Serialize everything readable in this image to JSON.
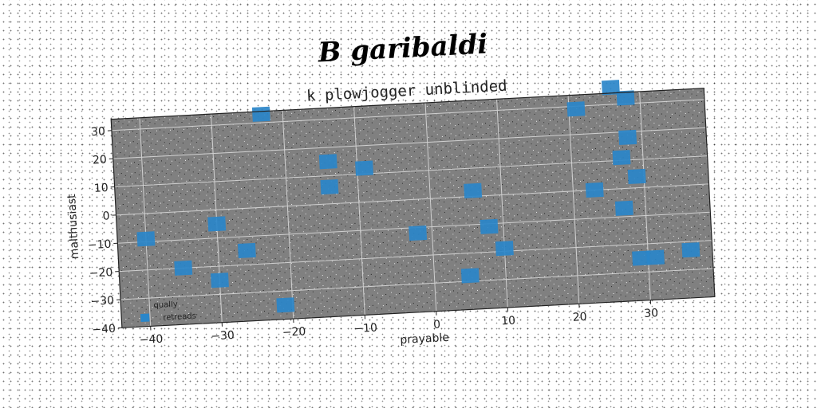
{
  "suptitle": "B garibaldi",
  "chart_data": {
    "type": "scatter",
    "title": "k plowjogger unblinded",
    "xlabel": "prayable",
    "ylabel": "malthusiast",
    "xlim": [
      -44,
      39
    ],
    "ylim": [
      -40,
      34
    ],
    "xticks": [
      -40,
      -30,
      -20,
      -10,
      0,
      10,
      20,
      30
    ],
    "yticks": [
      -40,
      -30,
      -20,
      -10,
      0,
      10,
      20,
      30
    ],
    "grid": true,
    "legend": {
      "placement": "lower-left",
      "title": "qually",
      "entries": [
        "retreads"
      ]
    },
    "series": [
      {
        "name": "retreads",
        "color": "#2a86c9",
        "points": [
          [
            -23,
            33
          ],
          [
            -40,
            -9
          ],
          [
            -35,
            -20
          ],
          [
            -30,
            -5
          ],
          [
            -30,
            -25
          ],
          [
            -26,
            -15
          ],
          [
            -21,
            -35
          ],
          [
            -14,
            15
          ],
          [
            -14,
            6
          ],
          [
            -9,
            12
          ],
          [
            -2,
            -12
          ],
          [
            6,
            2
          ],
          [
            5,
            -28
          ],
          [
            8,
            -11
          ],
          [
            10,
            -19
          ],
          [
            21,
            29
          ],
          [
            23,
            0
          ],
          [
            26,
            36
          ],
          [
            27,
            11
          ],
          [
            28,
            32
          ],
          [
            28,
            18
          ],
          [
            27,
            -7
          ],
          [
            29,
            4
          ],
          [
            29,
            -25
          ],
          [
            31,
            -25
          ],
          [
            36,
            -23
          ]
        ]
      }
    ]
  }
}
